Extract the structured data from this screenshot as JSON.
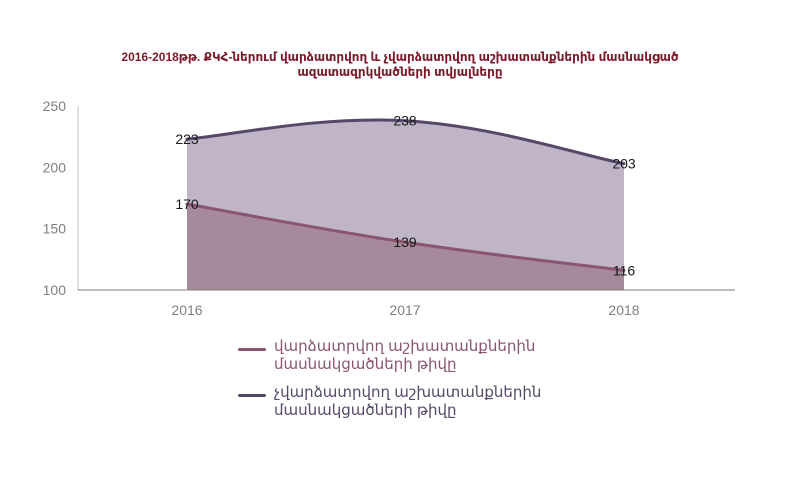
{
  "chart_data": {
    "type": "area",
    "title": [
      "2016-2018թթ. ՔԿՀ-ներում վարձատրվող և չվարձատրվող աշխատանքներին մասնակցած",
      "ազատազրկվածների տվյալները"
    ],
    "categories": [
      "2016",
      "2017",
      "2018"
    ],
    "yticks": [
      "100",
      "150",
      "200",
      "250"
    ],
    "ylim": [
      100,
      250
    ],
    "series": [
      {
        "name_lines": [
          "վարձատրվող աշխատանքներին",
          "մասնակցածների թիվը"
        ],
        "values": [
          170,
          139,
          116
        ],
        "labels": [
          "170",
          "139",
          "116"
        ],
        "line_color": "#8a5570",
        "fill_color": "#a68a9c"
      },
      {
        "name_lines": [
          "չվարձատրվող աշխատանքներին",
          "մասնակցածների թիվը"
        ],
        "values": [
          223,
          238,
          203
        ],
        "labels": [
          "223",
          "238",
          "203"
        ],
        "line_color": "#56486a",
        "fill_color": "#bfb5c6"
      }
    ],
    "grid": false,
    "legend": "bottom"
  }
}
